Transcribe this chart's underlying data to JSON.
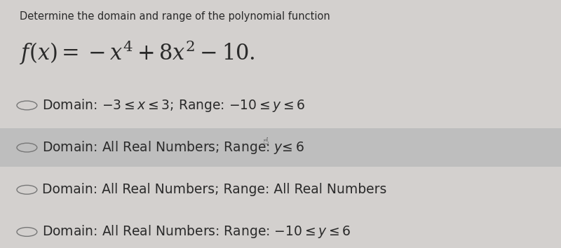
{
  "background_color": "#d3d0ce",
  "title_line1": "Determine the domain and range of the polynomial function",
  "title_line2": "$f(x) = -x^4 + 8x^2 - 10.$",
  "options": [
    {
      "label": "Domain: $-3 \\leq x \\leq 3$; Range: $-10 \\leq y \\leq 6$",
      "highlight": false
    },
    {
      "label": "Domain: All Real Numbers; Range: $y \\leq 6$",
      "highlight": true,
      "cursor": true
    },
    {
      "label": "Domain: All Real Numbers; Range: All Real Numbers",
      "highlight": false
    },
    {
      "label": "Domain: All Real Numbers: Range: $-10 \\leq y \\leq 6$",
      "highlight": false
    }
  ],
  "circle_color": "#777777",
  "text_color": "#2a2a2a",
  "highlight_color": "#bebebe",
  "title1_fontsize": 10.5,
  "title2_fontsize": 22,
  "option_fontsize": 13.5
}
